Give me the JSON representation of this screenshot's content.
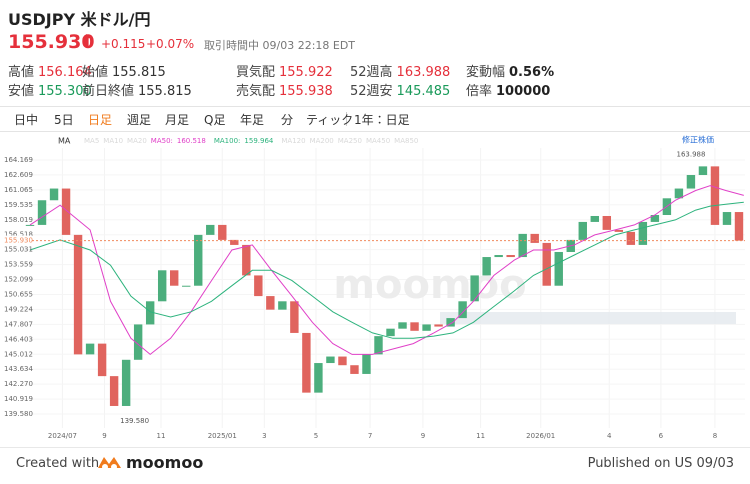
{
  "header": {
    "symbol": "USDJPY",
    "name": "米ドル/円",
    "price": "155.930",
    "change": "+0.115",
    "change_pct": "+0.07%",
    "status": "取引時間中 09/03 22:18 EDT"
  },
  "stats": [
    {
      "label": "高値",
      "value": "156.164",
      "color": "#e5303b"
    },
    {
      "label": "始値",
      "value": "155.815",
      "color": "#333333"
    },
    {
      "label": "買気配",
      "value": "155.922",
      "color": "#e5303b"
    },
    {
      "label": "52週高",
      "value": "163.988",
      "color": "#e5303b"
    },
    {
      "label": "変動幅",
      "value": "0.56%",
      "color": "#222222"
    },
    {
      "label": "安値",
      "value": "155.300",
      "color": "#1a9a5a"
    },
    {
      "label": "前日終値",
      "value": "155.815",
      "color": "#333333"
    },
    {
      "label": "売気配",
      "value": "155.938",
      "color": "#e5303b"
    },
    {
      "label": "52週安",
      "value": "145.485",
      "color": "#1a9a5a"
    },
    {
      "label": "倍率",
      "value": "100000",
      "color": "#222222"
    }
  ],
  "tabs": [
    "日中",
    "5日",
    "日足",
    "週足",
    "月足",
    "Q足",
    "年足",
    "分",
    "ティック"
  ],
  "active_tab": 2,
  "range_label": "1年：日足",
  "toolbar": {
    "indicator": "MA",
    "adjust": "修正株価"
  },
  "chart_data": {
    "type": "candlestick",
    "log_scale": true,
    "grid": true,
    "watermark": "moomoo",
    "up_color": "#4cae7d",
    "down_color": "#e0645e",
    "xlim": [
      -0.5,
      59.5
    ],
    "xticks": [
      {
        "value": 2.7,
        "label": "2024/07"
      },
      {
        "value": 6.2,
        "label": "9"
      },
      {
        "value": 10.9,
        "label": "11"
      },
      {
        "value": 16,
        "label": "2025/01"
      },
      {
        "value": 19.5,
        "label": "3"
      },
      {
        "value": 23.8,
        "label": "5"
      },
      {
        "value": 28.3,
        "label": "7"
      },
      {
        "value": 32.7,
        "label": "9"
      },
      {
        "value": 37.5,
        "label": "11"
      },
      {
        "value": 42.5,
        "label": "2026/01"
      },
      {
        "value": 48.2,
        "label": "4"
      },
      {
        "value": 52.5,
        "label": "6"
      },
      {
        "value": 57,
        "label": "8"
      }
    ],
    "ylim": [
      138.34,
      165.43
    ],
    "yticks": [
      164.169,
      162.609,
      161.065,
      159.535,
      158.019,
      156.518,
      155.031,
      153.559,
      152.099,
      150.655,
      149.224,
      147.807,
      146.403,
      145.012,
      143.634,
      {
        "value": 142.27,
        "label": "142.270"
      },
      140.919,
      {
        "value": 139.58,
        "label": "139.580"
      }
    ],
    "x": [
      0,
      1,
      2,
      3,
      4,
      5,
      6,
      7,
      8,
      9,
      10,
      11,
      12,
      13,
      14,
      15,
      16,
      17,
      18,
      19,
      20,
      21,
      22,
      23,
      24,
      25,
      26,
      27,
      28,
      29,
      30,
      31,
      32,
      33,
      34,
      35,
      36,
      37,
      38,
      39,
      40,
      41,
      42,
      43,
      44,
      45,
      46,
      47,
      48,
      49,
      50,
      51,
      52,
      53,
      54,
      55,
      56,
      57,
      58,
      59
    ],
    "close": [
      157.5,
      160,
      161.2,
      156.5,
      145,
      146,
      143,
      140.3,
      144.5,
      147.8,
      150,
      153,
      151.5,
      151.5,
      156.5,
      157.5,
      156,
      155.5,
      152.5,
      150.5,
      149.2,
      150,
      147,
      141.5,
      144.2,
      144.8,
      144,
      143.2,
      145,
      146.7,
      147.4,
      148,
      147.2,
      147.8,
      147.6,
      148.4,
      150,
      152.5,
      154.3,
      154.5,
      154.3,
      156.6,
      155.7,
      151.5,
      154.8,
      156,
      157.8,
      158.4,
      157,
      156.8,
      155.5,
      157.8,
      158.5,
      160.2,
      161.2,
      162.6,
      163.5,
      157.5,
      158.8,
      155.93
    ],
    "inactive_ma": [
      "MA5",
      "MA10",
      "MA20"
    ],
    "inactive_ma_after": [
      "MA120",
      "MA200",
      "MA250",
      "MA450",
      "MA850"
    ],
    "series": [
      {
        "name": "MA50:",
        "current": 160.518,
        "color": "#e040c8",
        "x": [
          0,
          2.5,
          5,
          6.7,
          8.4,
          10,
          11.7,
          13.4,
          15.1,
          16.8,
          18.5,
          20.1,
          21.8,
          23.5,
          25.2,
          26.8,
          28.5,
          30.2,
          31.9,
          33.6,
          35.2,
          36.9,
          38.6,
          40.3,
          41.9,
          43.6,
          45.3,
          47,
          48.7,
          50.3,
          52,
          53.7,
          55.4,
          56.6,
          57.9,
          59.4
        ],
        "values": [
          157.5,
          159.5,
          157,
          150,
          146.5,
          145,
          146.5,
          149,
          152,
          155,
          155.5,
          153,
          150.5,
          148,
          146,
          145,
          145,
          145.5,
          146,
          147,
          148,
          150,
          152.5,
          154,
          155,
          155,
          155.5,
          156.5,
          157,
          157.5,
          158.5,
          160,
          161,
          161.5,
          161,
          160.5
        ]
      },
      {
        "name": "MA100:",
        "current": 159.964,
        "color": "#2db37d",
        "x": [
          0,
          2.5,
          5,
          6.7,
          8.4,
          10,
          11.7,
          13.4,
          15.1,
          16.8,
          18.5,
          20.1,
          21.8,
          23.5,
          25.2,
          26.8,
          28.5,
          30.2,
          31.9,
          33.6,
          35.2,
          36.9,
          38.6,
          40.3,
          41.9,
          43.6,
          45.3,
          47,
          48.7,
          50.3,
          52,
          53.7,
          55.4,
          56.6,
          57.9,
          59.4
        ],
        "values": [
          155,
          156,
          155,
          153.5,
          150.5,
          149,
          148.5,
          149,
          150,
          151.5,
          153,
          153,
          152,
          150.5,
          149,
          148,
          147,
          146.5,
          146.5,
          146.7,
          147,
          148,
          149.5,
          151,
          152.5,
          153.5,
          154.5,
          155.5,
          156.5,
          157,
          157.5,
          158,
          159,
          159.4,
          159.6,
          159.8
        ]
      }
    ],
    "price_line": {
      "value": 155.93,
      "label": "155.930",
      "color": "#f08a5d"
    },
    "annotations": [
      {
        "value": 163.988,
        "x": 53.8
      },
      {
        "value": 139.58,
        "label": "139.580",
        "x": 7.5
      }
    ]
  },
  "footer": {
    "created": "Created with",
    "brand": "moomoo",
    "published": "Published on US 09/03"
  }
}
